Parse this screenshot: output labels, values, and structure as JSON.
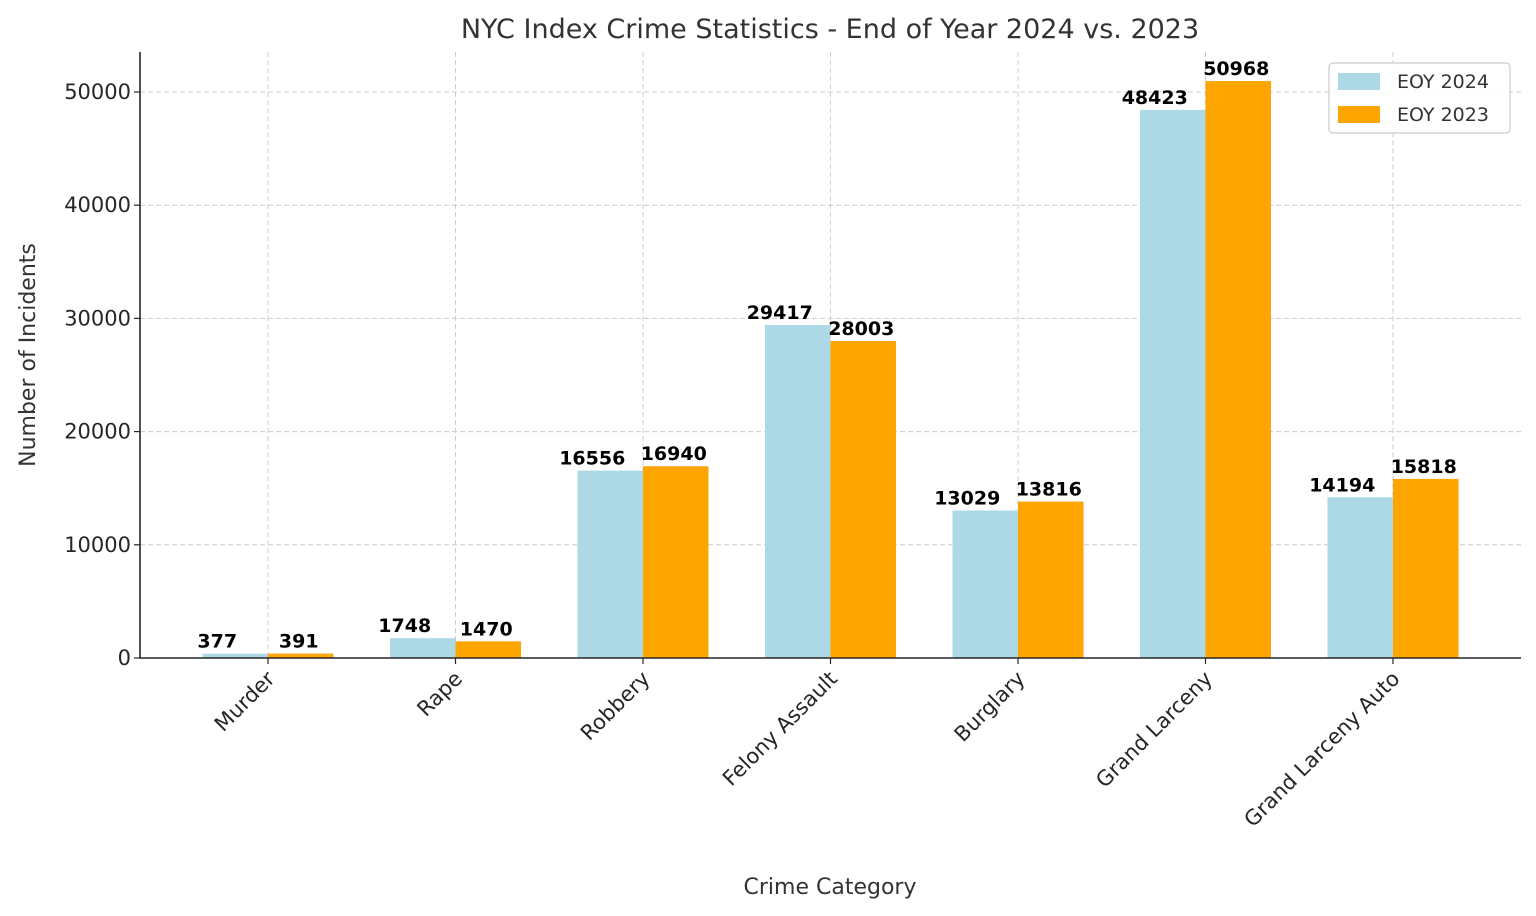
{
  "chart_data": {
    "type": "bar",
    "title": "NYC Index Crime Statistics - End of Year 2024 vs. 2023",
    "xlabel": "Crime Category",
    "ylabel": "Number of Incidents",
    "categories": [
      "Murder",
      "Rape",
      "Robbery",
      "Felony Assault",
      "Burglary",
      "Grand Larceny",
      "Grand Larceny Auto"
    ],
    "series": [
      {
        "name": "EOY 2024",
        "color": "#add8e6",
        "values": [
          377,
          1748,
          16556,
          29417,
          13029,
          48423,
          14194
        ]
      },
      {
        "name": "EOY 2023",
        "color": "#ffa500",
        "values": [
          391,
          1470,
          16940,
          28003,
          13816,
          50968,
          15818
        ]
      }
    ],
    "ylim": [
      0,
      53534
    ],
    "yticks": [
      0,
      10000,
      20000,
      30000,
      40000,
      50000
    ],
    "grid": true,
    "legend_position": "upper right",
    "bar_labels": true,
    "x_tick_rotation": 45
  }
}
